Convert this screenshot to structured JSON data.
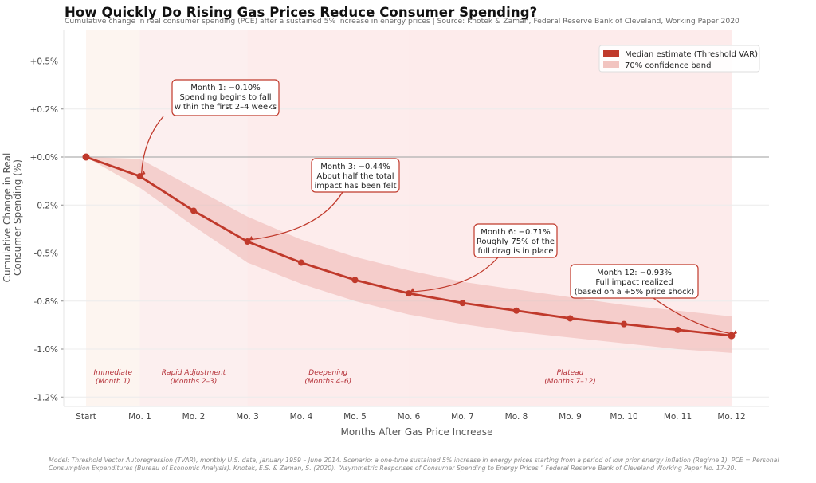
{
  "chart_data": {
    "type": "line",
    "title": "How Quickly Do Rising Gas Prices Reduce Consumer Spending?",
    "subtitle": "Cumulative change in real consumer spending (PCE) after a sustained 5% increase in energy prices  |  Source: Knotek & Zaman, Federal Reserve Bank of Cleveland, Working Paper 2020",
    "xlabel": "Months After Gas Price Increase",
    "ylabel_lines": [
      "Cumulative Change in Real",
      "Consumer Spending (%)"
    ],
    "categories": [
      "Start",
      "Mo. 1",
      "Mo. 2",
      "Mo. 3",
      "Mo. 4",
      "Mo. 5",
      "Mo. 6",
      "Mo. 7",
      "Mo. 8",
      "Mo. 9",
      "Mo. 10",
      "Mo. 11",
      "Mo. 12"
    ],
    "ylim": [
      -1.3,
      0.6
    ],
    "y_ticks": [
      {
        "value": 0.5,
        "label": "+0.5%"
      },
      {
        "value": 0.25,
        "label": "+0.2%"
      },
      {
        "value": 0.0,
        "label": "+0.0%"
      },
      {
        "value": -0.25,
        "label": "-0.2%"
      },
      {
        "value": -0.5,
        "label": "-0.5%"
      },
      {
        "value": -0.75,
        "label": "-0.8%"
      },
      {
        "value": -1.0,
        "label": "-1.0%"
      },
      {
        "value": -1.25,
        "label": "-1.2%"
      }
    ],
    "grid": true,
    "series": [
      {
        "name": "Median estimate (Threshold VAR)",
        "color": "#c0392b",
        "values": [
          0.0,
          -0.1,
          -0.28,
          -0.44,
          -0.55,
          -0.64,
          -0.71,
          -0.76,
          -0.8,
          -0.84,
          -0.87,
          -0.9,
          -0.93
        ]
      }
    ],
    "band": {
      "name": "70% confidence band",
      "color": "#e8a09a",
      "upper": [
        0.0,
        -0.01,
        -0.16,
        -0.31,
        -0.43,
        -0.52,
        -0.59,
        -0.65,
        -0.69,
        -0.73,
        -0.77,
        -0.8,
        -0.83
      ],
      "lower": [
        0.0,
        -0.16,
        -0.36,
        -0.55,
        -0.66,
        -0.75,
        -0.82,
        -0.87,
        -0.91,
        -0.94,
        -0.97,
        -1.0,
        -1.02
      ]
    },
    "phases": [
      {
        "label_line1": "Immediate",
        "label_line2": "(Month 1)",
        "from": 0,
        "to": 1,
        "color": "#fdf5f0"
      },
      {
        "label_line1": "Rapid Adjustment",
        "label_line2": "(Months 2–3)",
        "from": 1,
        "to": 3,
        "color": "#fcefef"
      },
      {
        "label_line1": "Deepening",
        "label_line2": "(Months 4–6)",
        "from": 3,
        "to": 6,
        "color": "#fdecec"
      },
      {
        "label_line1": "Plateau",
        "label_line2": "(Months 7–12)",
        "from": 6,
        "to": 12,
        "color": "#fdebeb"
      }
    ],
    "annotations": [
      {
        "target": 1,
        "lines": [
          "Month 1:  −0.10%",
          "Spending begins to fall",
          "within the first 2–4 weeks"
        ]
      },
      {
        "target": 3,
        "lines": [
          "Month 3:  −0.44%",
          "About half the total",
          "impact has been felt"
        ]
      },
      {
        "target": 6,
        "lines": [
          "Month 6:  −0.71%",
          "Roughly 75% of the",
          "full drag is in place"
        ]
      },
      {
        "target": 12,
        "lines": [
          "Month 12:  −0.93%",
          "Full impact realized",
          "(based on a +5% price shock)"
        ]
      }
    ],
    "legend": {
      "position": "top-right",
      "items": [
        {
          "label": "Median estimate (Threshold VAR)",
          "color": "#c0392b"
        },
        {
          "label": "70% confidence band",
          "color": "#f2c4c0"
        }
      ]
    }
  },
  "footnote": {
    "line1": "Model: Threshold Vector Autoregression (TVAR), monthly U.S. data, January 1959 – June 2014. Scenario: a one-time sustained 5% increase in energy prices starting from a period of low prior energy inflation (Regime 1). PCE = Personal",
    "line2": "Consumption Expenditures (Bureau of Economic Analysis). Knotek, E.S. & Zaman, S. (2020). “Asymmetric Responses of Consumer Spending to Energy Prices.” Federal Reserve Bank of Cleveland Working Paper No. 17-20."
  }
}
